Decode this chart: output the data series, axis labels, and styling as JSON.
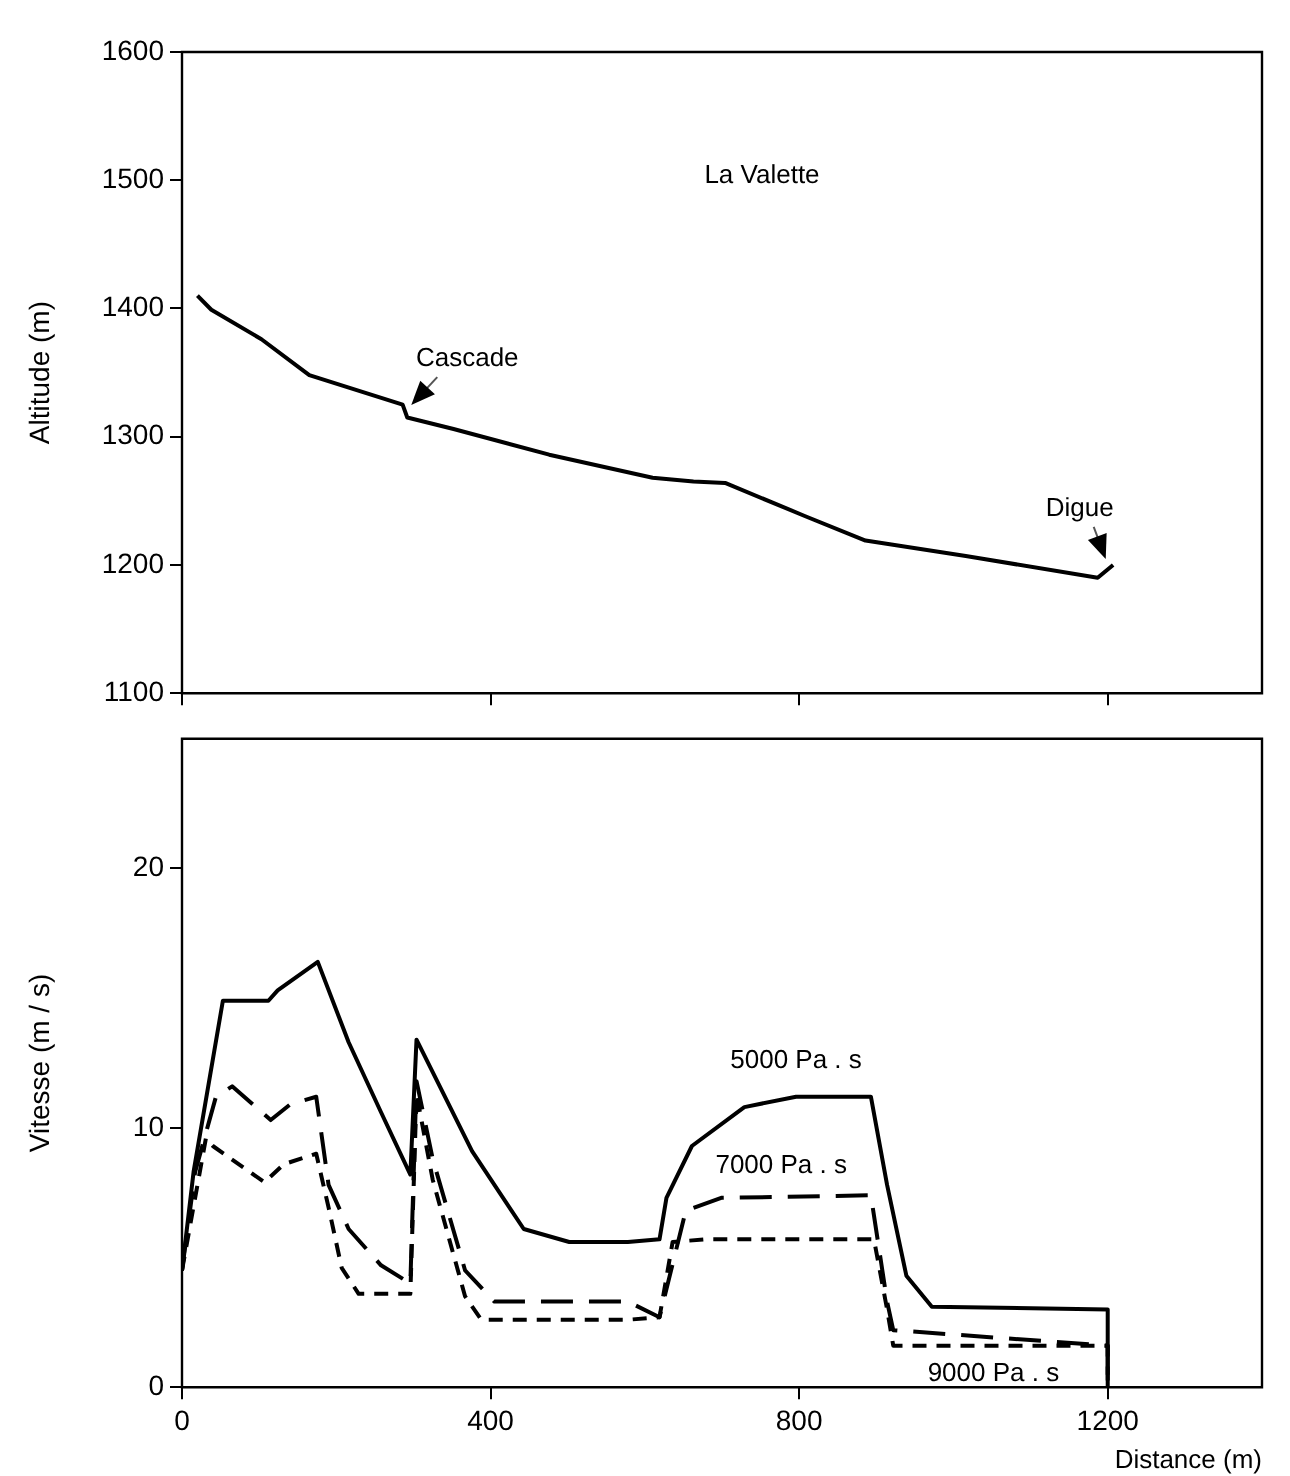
{
  "chart_data": [
    {
      "type": "line",
      "ylabel": "Altitude (m)",
      "xlim": [
        0,
        1400
      ],
      "xticks": [
        0,
        400,
        800,
        1200
      ],
      "ylim": [
        1100,
        1600
      ],
      "yticks": [
        1100,
        1200,
        1300,
        1400,
        1500,
        1600
      ],
      "tick_labels": "y",
      "grid": false,
      "legend": false,
      "marker": "none",
      "annotations": [
        "La Valette",
        {
          "text": "Cascade",
          "x": 292,
          "y": 1320
        },
        {
          "text": "Digue",
          "x": 1200,
          "y": 1200
        }
      ],
      "series": [
        {
          "color": "#000000",
          "line_style": "solid",
          "x": [
            20,
            38,
            103,
            165,
            286,
            292,
            352,
            476,
            610,
            663,
            704,
            808,
            886,
            1016,
            1187,
            1207
          ],
          "values": [
            1410,
            1399,
            1376,
            1348,
            1325,
            1315,
            1306,
            1286,
            1268,
            1265,
            1264,
            1238,
            1219,
            1207,
            1190,
            1200
          ]
        }
      ]
    },
    {
      "type": "line",
      "xlabel": "Distance (m)",
      "ylabel": "Vitesse (m / s)",
      "xlim": [
        0,
        1400
      ],
      "xticks": [
        0,
        400,
        800,
        1200
      ],
      "ylim": [
        0,
        25
      ],
      "yticks": [
        0,
        10,
        20
      ],
      "grid": false,
      "legend": false,
      "marker": "none",
      "series": [
        {
          "name": "5000 Pa . s",
          "color": "#000000",
          "line_style": "solid",
          "x": [
            0,
            15,
            53,
            112,
            124,
            176,
            216,
            258,
            296,
            304,
            376,
            443,
            502,
            578,
            619,
            628,
            661,
            729,
            796,
            893,
            914,
            939,
            972,
            1200,
            1200
          ],
          "values": [
            4.5,
            8.3,
            14.9,
            14.9,
            15.3,
            16.4,
            13.3,
            10.6,
            8.2,
            13.4,
            9.1,
            6.1,
            5.6,
            5.6,
            5.7,
            7.3,
            9.3,
            10.8,
            11.2,
            11.2,
            7.8,
            4.3,
            3.1,
            3.0,
            0
          ]
        },
        {
          "name": "7000 Pa . s",
          "color": "#000000",
          "line_style": "dashed",
          "x": [
            0,
            17,
            44,
            65,
            115,
            140,
            174,
            190,
            216,
            258,
            296,
            304,
            325,
            367,
            405,
            578,
            619,
            653,
            699,
            893,
            914,
            922,
            1200,
            1200
          ],
          "values": [
            4.5,
            8.3,
            11.2,
            11.6,
            10.3,
            10.9,
            11.2,
            7.8,
            6.1,
            4.7,
            4.0,
            11.8,
            8.8,
            4.5,
            3.3,
            3.3,
            2.7,
            6.8,
            7.3,
            7.4,
            3.3,
            2.2,
            1.6,
            0
          ]
        },
        {
          "name": "9000 Pa . s",
          "color": "#000000",
          "line_style": "dashed",
          "x": [
            0,
            31,
            40,
            107,
            132,
            174,
            191,
            207,
            229,
            296,
            304,
            325,
            367,
            388,
            578,
            619,
            636,
            678,
            897,
            914,
            922,
            1000,
            1200,
            1200
          ],
          "values": [
            4.5,
            9.6,
            9.3,
            7.9,
            8.6,
            9.0,
            6.8,
            4.6,
            3.6,
            3.6,
            11.3,
            8.0,
            3.5,
            2.6,
            2.6,
            2.7,
            5.6,
            5.7,
            5.7,
            3.0,
            1.6,
            1.6,
            1.6,
            0
          ]
        }
      ]
    }
  ]
}
